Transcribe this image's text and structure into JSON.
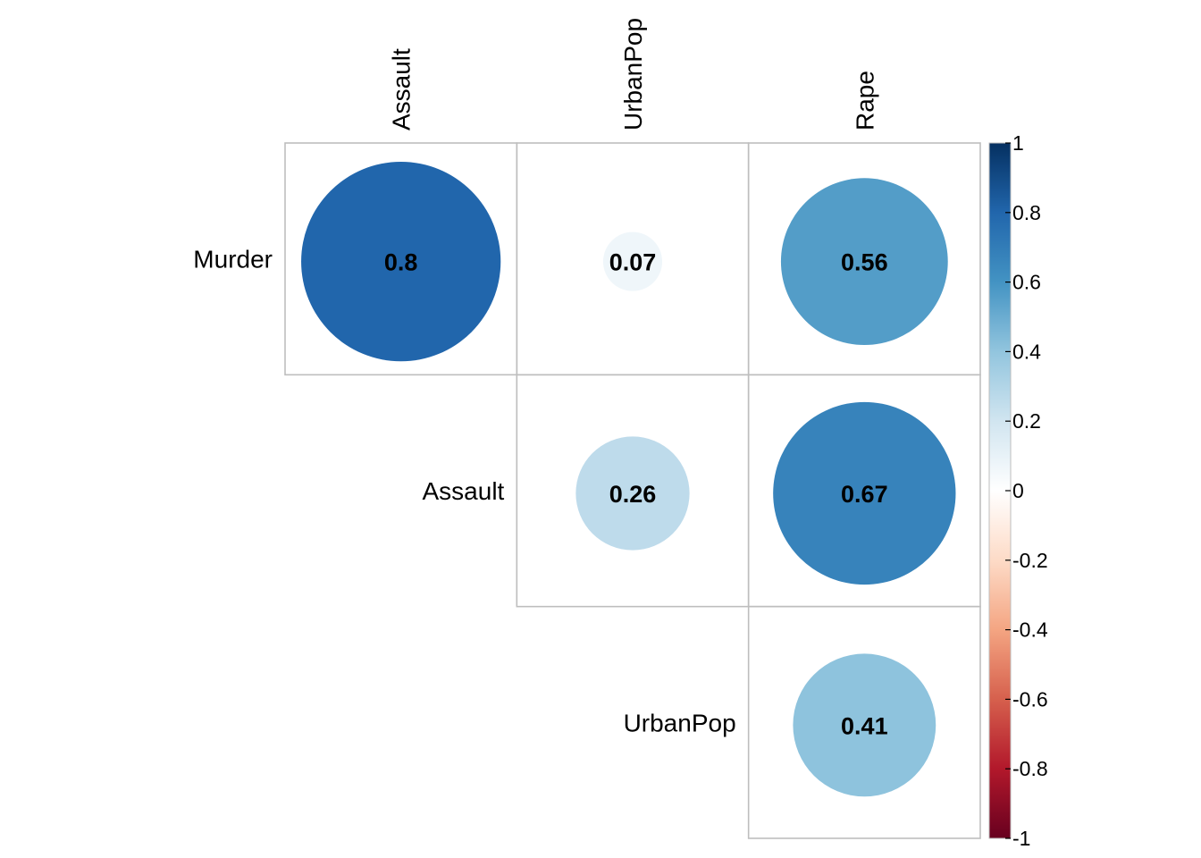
{
  "chart_data": {
    "type": "heatmap",
    "subtype": "correlation-matrix-upper-circle",
    "title": "",
    "row_labels": [
      "Murder",
      "Assault",
      "UrbanPop"
    ],
    "col_labels": [
      "Assault",
      "UrbanPop",
      "Rape"
    ],
    "cells": [
      {
        "row": "Murder",
        "col": "Assault",
        "value": 0.8,
        "label": "0.8"
      },
      {
        "row": "Murder",
        "col": "UrbanPop",
        "value": 0.07,
        "label": "0.07"
      },
      {
        "row": "Murder",
        "col": "Rape",
        "value": 0.56,
        "label": "0.56"
      },
      {
        "row": "Assault",
        "col": "UrbanPop",
        "value": 0.26,
        "label": "0.26"
      },
      {
        "row": "Assault",
        "col": "Rape",
        "value": 0.67,
        "label": "0.67"
      },
      {
        "row": "UrbanPop",
        "col": "Rape",
        "value": 0.41,
        "label": "0.41"
      }
    ],
    "colorbar": {
      "range": [
        -1,
        1
      ],
      "ticks": [
        "1",
        "0.8",
        "0.6",
        "0.4",
        "0.2",
        "0",
        "-0.2",
        "-0.4",
        "-0.6",
        "-0.8",
        "-1"
      ],
      "placement": "right",
      "color_stops": [
        "#67001f",
        "#b2182b",
        "#d6604d",
        "#f4a582",
        "#fddbc7",
        "#ffffff",
        "#d1e5f0",
        "#92c5de",
        "#4393c3",
        "#2166ac",
        "#053061"
      ]
    },
    "grid_color": "#bebebe"
  }
}
